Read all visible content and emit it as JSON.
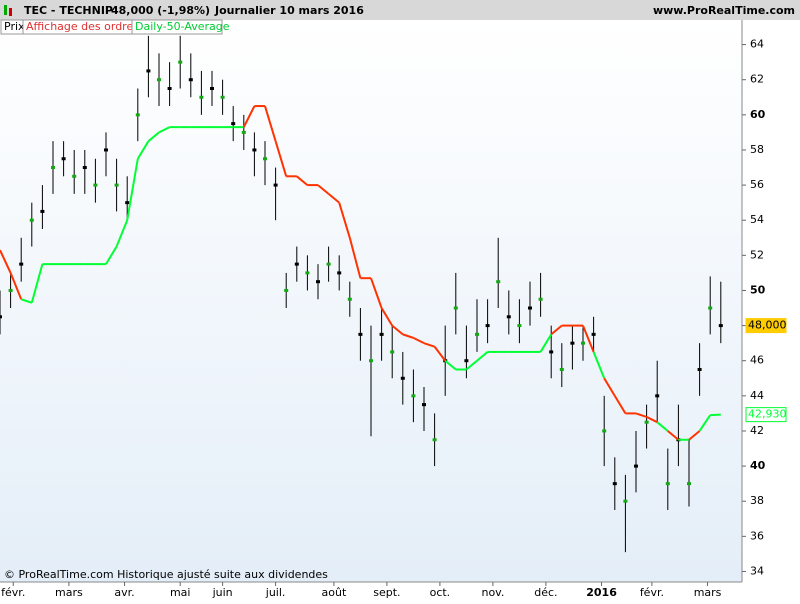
{
  "header": {
    "symbol": "TEC - TECHNIP",
    "quote": "48,000 (-1,98%)",
    "period": "Journalier  10 mars 2016",
    "site": "www.ProRealTime.com"
  },
  "tabs": [
    "Prix",
    "Affichage des ordres",
    "Daily-50-Average"
  ],
  "footer": "© ProRealTime.com  Historique ajusté suite aux dividendes",
  "chart_data": {
    "type": "candlestick",
    "x": [
      0,
      4,
      8,
      12,
      16,
      20,
      24,
      28,
      32,
      36,
      40,
      44,
      48,
      52,
      56,
      60,
      64,
      68,
      72,
      76,
      80,
      84,
      88,
      92,
      96,
      100,
      104,
      108,
      112,
      116,
      120,
      124,
      128,
      132,
      136,
      140,
      144,
      148,
      152,
      156,
      160,
      164,
      168,
      172,
      176,
      180,
      184,
      188,
      192,
      196,
      200,
      204,
      208,
      212,
      216,
      220,
      224,
      228,
      232,
      236,
      240,
      244,
      248,
      252,
      256,
      260,
      264,
      268,
      272
    ],
    "xlim": [
      0,
      280
    ],
    "xticks": [
      {
        "value": 5,
        "label": "févr."
      },
      {
        "value": 26,
        "label": "mars"
      },
      {
        "value": 47,
        "label": "avr."
      },
      {
        "value": 68,
        "label": "mai"
      },
      {
        "value": 84,
        "label": "juin"
      },
      {
        "value": 104,
        "label": "juil."
      },
      {
        "value": 126,
        "label": "août"
      },
      {
        "value": 146,
        "label": "sept."
      },
      {
        "value": 166,
        "label": "oct."
      },
      {
        "value": 186,
        "label": "nov."
      },
      {
        "value": 206,
        "label": "déc."
      },
      {
        "value": 227,
        "label": "2016"
      },
      {
        "value": 246,
        "label": "févr."
      },
      {
        "value": 267,
        "label": "mars"
      }
    ],
    "ylim": [
      33.4,
      65.4
    ],
    "yticks": [
      34,
      36,
      38,
      40,
      42,
      44,
      46,
      48,
      50,
      52,
      54,
      56,
      58,
      60,
      62,
      64
    ],
    "series": [
      {
        "name": "Prix",
        "color": "#000000",
        "close": [
          48.5,
          50,
          51.5,
          54,
          54.5,
          57,
          57.5,
          56.5,
          57,
          56,
          58,
          56,
          55,
          60,
          62.5,
          62,
          61.5,
          63,
          62,
          61,
          61.5,
          61,
          59.5,
          59,
          58,
          57.5,
          56,
          50,
          51.5,
          51,
          50.5,
          51.5,
          51,
          49.5,
          47.5,
          46,
          47.5,
          46.5,
          45,
          44,
          43.5,
          41.5,
          46,
          49,
          46,
          47.5,
          48,
          50.5,
          48.5,
          48,
          49,
          49.5,
          46.5,
          45.5,
          47,
          47,
          47.5,
          42,
          39,
          38,
          40,
          42.5,
          44,
          39,
          41.5,
          39,
          45.5,
          49,
          48
        ],
        "high": [
          50,
          51,
          53,
          55,
          56,
          58.5,
          58.5,
          58,
          58,
          57.5,
          59,
          57.5,
          56.5,
          61.5,
          64.5,
          63.5,
          63,
          64.5,
          63.5,
          62.5,
          62.5,
          62,
          60.5,
          60,
          59,
          58.5,
          57,
          51,
          52.5,
          52,
          51.5,
          52.5,
          52,
          50.5,
          49,
          48,
          49,
          48,
          46.5,
          45.5,
          44.5,
          43,
          48,
          51,
          48,
          49.5,
          49.5,
          53,
          50,
          49.5,
          50.5,
          51,
          48,
          47,
          48,
          48,
          48.5,
          44,
          40.5,
          39.5,
          42,
          43.5,
          46,
          41,
          43.5,
          41.5,
          47,
          50.8,
          50.5
        ],
        "low": [
          47.5,
          49,
          50.5,
          52.5,
          53.5,
          55.5,
          56.5,
          55.5,
          55.5,
          55,
          56.5,
          54.5,
          54,
          58.5,
          61,
          60.5,
          60.5,
          61.5,
          61,
          60,
          60.5,
          60,
          58.5,
          58,
          56.5,
          56,
          54,
          49,
          50.5,
          50,
          49.5,
          50.5,
          50,
          48.5,
          46,
          41.7,
          46,
          45,
          43.5,
          42.5,
          42,
          40,
          44,
          47.5,
          45,
          46.5,
          47,
          49,
          47.5,
          47,
          48,
          48.5,
          45,
          44.5,
          45.5,
          46,
          46.5,
          40,
          37.5,
          35.1,
          38.5,
          41,
          42.5,
          37.5,
          40,
          37.7,
          44,
          47.5,
          47
        ]
      },
      {
        "name": "Daily-50-Average",
        "color": "#00ff33",
        "color_above": "#ff3300",
        "values": [
          52.3,
          51,
          49.5,
          49.3,
          51.5,
          51.5,
          51.5,
          51.5,
          51.5,
          51.5,
          51.5,
          52.5,
          54,
          57.5,
          58.5,
          59,
          59.3,
          59.3,
          59.3,
          59.3,
          59.3,
          59.3,
          59.3,
          59.3,
          60.5,
          60.5,
          58.5,
          56.5,
          56.5,
          56,
          56,
          55.5,
          55,
          53,
          50.7,
          50.7,
          49,
          48,
          47.5,
          47.3,
          47,
          46.8,
          46,
          45.5,
          45.5,
          46,
          46.5,
          46.5,
          46.5,
          46.5,
          46.5,
          46.5,
          47.5,
          48,
          48,
          48,
          46.5,
          45,
          44,
          43,
          43,
          42.8,
          42.5,
          42,
          41.5,
          41.5,
          42,
          42.9,
          42.93
        ]
      }
    ],
    "price_tags": [
      {
        "value": 48,
        "label": "48,000",
        "color": "#ffcc00"
      },
      {
        "value": 42.93,
        "label": "42,930",
        "color": "#00ff33"
      }
    ]
  }
}
